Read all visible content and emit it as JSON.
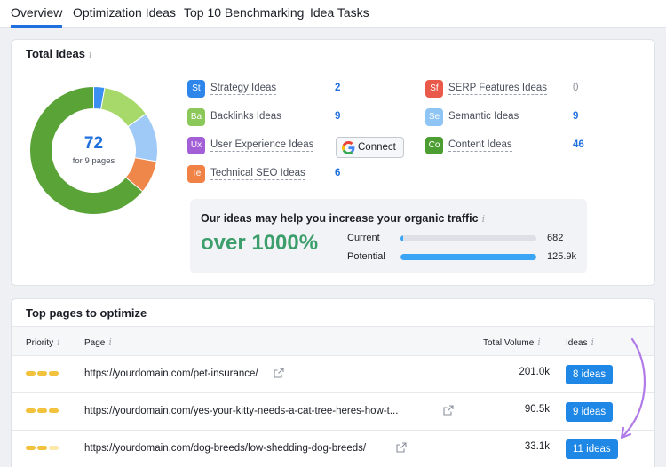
{
  "tabs": [
    "Overview",
    "Optimization Ideas",
    "Top 10 Benchmarking",
    "Idea Tasks"
  ],
  "total_ideas": {
    "title": "Total Ideas",
    "info_icon": "i",
    "count": "72",
    "sub": "for 9 pages",
    "donut_slices": [
      {
        "name": "Strategy Ideas",
        "value": 2,
        "color": "#3a8ff0"
      },
      {
        "name": "Backlinks Ideas",
        "value": 9,
        "color": "#a6d96a"
      },
      {
        "name": "Semantic Ideas",
        "value": 9,
        "color": "#9fc9f7"
      },
      {
        "name": "Technical SEO Ideas",
        "value": 6,
        "color": "#f0874a"
      },
      {
        "name": "Content Ideas",
        "value": 46,
        "color": "#5aa337"
      }
    ],
    "ideas_left": [
      {
        "abbr": "St",
        "label": "Strategy Ideas",
        "count": "2",
        "color": "#2f86ea"
      },
      {
        "abbr": "Ba",
        "label": "Backlinks Ideas",
        "count": "9",
        "color": "#8cc75a"
      },
      {
        "abbr": "Ux",
        "label": "User Experience Ideas",
        "count": "",
        "color": "#a35fd6"
      },
      {
        "abbr": "Te",
        "label": "Technical SEO Ideas",
        "count": "6",
        "color": "#f08245"
      }
    ],
    "ideas_right": [
      {
        "abbr": "Sf",
        "label": "SERP Features Ideas",
        "count": "0",
        "color": "#ea5a4b"
      },
      {
        "abbr": "Se",
        "label": "Semantic Ideas",
        "count": "9",
        "color": "#8ec5f4"
      },
      {
        "abbr": "Co",
        "label": "Content Ideas",
        "count": "46",
        "color": "#4c9e32"
      }
    ],
    "connect_label": "Connect"
  },
  "traffic": {
    "title": "Our ideas may help you increase your organic traffic",
    "info_icon": "i",
    "big": "over 1000%",
    "current_label": "Current",
    "current_value": "682",
    "current_fill": 0.005,
    "potential_label": "Potential",
    "potential_value": "125.9k",
    "potential_fill": 1.0
  },
  "top_pages": {
    "title": "Top pages to optimize",
    "columns": [
      "Priority",
      "Page",
      "Total Volume",
      "Ideas"
    ],
    "info_icon": "i",
    "rows": [
      {
        "url": "https://yourdomain.com/pet-insurance/",
        "volume": "201.0k",
        "ideas": "8 ideas",
        "priority": 3
      },
      {
        "url": "https://yourdomain.com/yes-your-kitty-needs-a-cat-tree-heres-how-t...",
        "volume": "90.5k",
        "ideas": "9 ideas",
        "priority": 3
      },
      {
        "url": "https://yourdomain.com/dog-breeds/low-shedding-dog-breeds/",
        "volume": "33.1k",
        "ideas": "11 ideas",
        "priority": 2
      }
    ]
  }
}
